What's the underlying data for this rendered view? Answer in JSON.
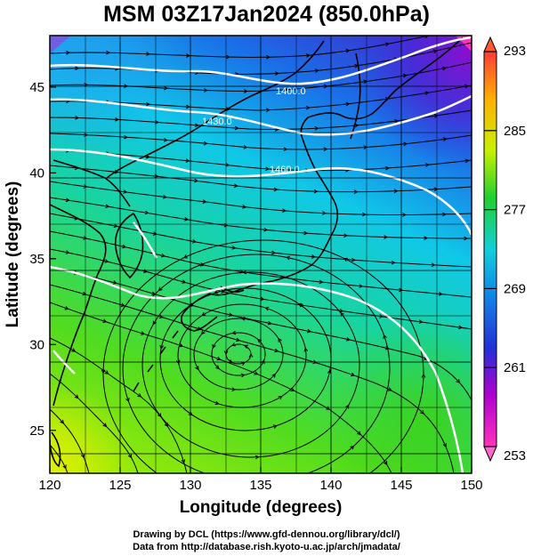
{
  "title": "MSM 03Z17Jan2024 (850.0hPa)",
  "credits": {
    "line1": "Drawing by DCL (https://www.gfd-dennou.org/library/dcl/)",
    "line2": "Data from http://database.rish.kyoto-u.ac.jp/arch/jmadata/"
  },
  "map": {
    "x_axis": {
      "title": "Longitude (degrees)",
      "range": [
        120,
        150
      ],
      "ticks": [
        "120",
        "125",
        "130",
        "135",
        "140",
        "145",
        "150"
      ]
    },
    "y_axis": {
      "title": "Latitude  (degrees)",
      "range": [
        22.5,
        48
      ],
      "ticks": [
        "25",
        "30",
        "35",
        "40",
        "45"
      ]
    },
    "grid": true,
    "contour_labels": [
      "1400.0",
      "1430.0",
      "1460.0"
    ],
    "colorbar": {
      "ticks": [
        "253",
        "261",
        "269",
        "277",
        "285",
        "293"
      ],
      "range": [
        253,
        293
      ],
      "colors": [
        "#ff33bb",
        "#b000d0",
        "#2230d8",
        "#12cfd8",
        "#20d030",
        "#c8f000",
        "#ffb000",
        "#ff3a3a"
      ]
    }
  }
}
